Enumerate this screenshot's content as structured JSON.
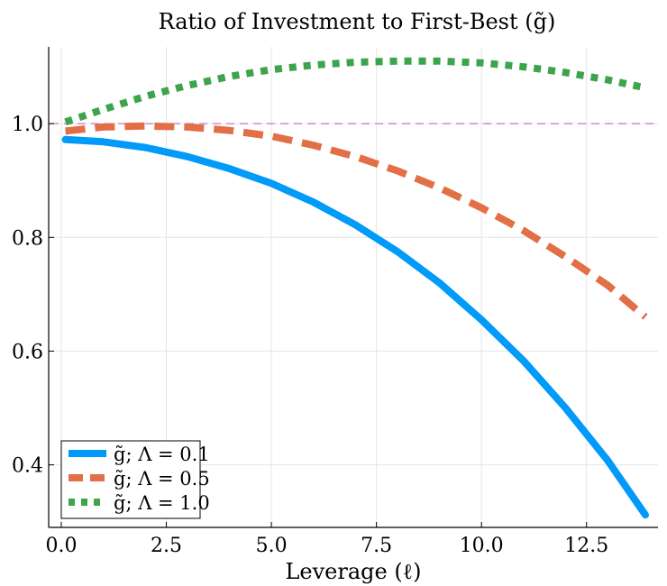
{
  "chart_data": {
    "type": "line",
    "title": "Ratio of Investment to First-Best (g̃)",
    "xlabel": "Leverage (ℓ)",
    "ylabel": "",
    "xlim": [
      -0.3,
      14.2
    ],
    "ylim": [
      0.29,
      1.135
    ],
    "x_ticks": [
      "0.0",
      "2.5",
      "5.0",
      "7.5",
      "10.0",
      "12.5"
    ],
    "x_tick_values": [
      0,
      2.5,
      5,
      7.5,
      10,
      12.5
    ],
    "y_ticks": [
      "0.4",
      "0.6",
      "0.8",
      "1.0"
    ],
    "y_tick_values": [
      0.4,
      0.6,
      0.8,
      1.0
    ],
    "grid": true,
    "legend_position": "bottom-left",
    "reference_line": {
      "y": 1.0,
      "color": "#c86fd2",
      "style": "dashed"
    },
    "series": [
      {
        "name": "g̃; Λ = 0.1",
        "color": "#009af9",
        "style": "solid",
        "x": [
          0.1,
          1,
          2,
          3,
          4,
          5,
          6,
          7,
          8,
          9,
          10,
          11,
          12,
          13,
          13.9
        ],
        "y": [
          0.972,
          0.968,
          0.958,
          0.942,
          0.921,
          0.895,
          0.862,
          0.822,
          0.775,
          0.72,
          0.655,
          0.583,
          0.5,
          0.408,
          0.312
        ]
      },
      {
        "name": "g̃; Λ = 0.5",
        "color": "#e26f46",
        "style": "dashed",
        "x": [
          0.1,
          1,
          2,
          3,
          4,
          5,
          6,
          7,
          8,
          9,
          10,
          11,
          12,
          13,
          13.9
        ],
        "y": [
          0.987,
          0.994,
          0.996,
          0.994,
          0.988,
          0.978,
          0.962,
          0.942,
          0.917,
          0.887,
          0.852,
          0.812,
          0.766,
          0.716,
          0.66
        ]
      },
      {
        "name": "g̃; Λ = 1.0",
        "color": "#3da44d",
        "style": "dotted",
        "x": [
          0.1,
          1,
          2,
          3,
          4,
          5,
          6,
          7,
          8,
          9,
          10,
          11,
          12,
          13,
          13.9
        ],
        "y": [
          1.003,
          1.025,
          1.048,
          1.067,
          1.083,
          1.095,
          1.103,
          1.108,
          1.11,
          1.11,
          1.107,
          1.1,
          1.09,
          1.077,
          1.063
        ]
      }
    ]
  }
}
